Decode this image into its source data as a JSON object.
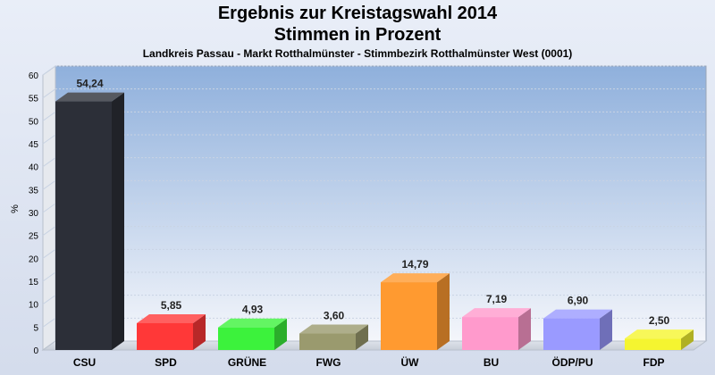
{
  "chart_data": {
    "type": "bar",
    "title": [
      "Ergebnis zur Kreistagswahl 2014",
      "Stimmen in Prozent"
    ],
    "subtitle": "Landkreis Passau - Markt Rotthalmünster - Stimmbezirk Rotthalmünster West (0001)",
    "ylabel": "%",
    "ylim": [
      0,
      60
    ],
    "yticks": [
      "0",
      "5",
      "10",
      "15",
      "20",
      "25",
      "30",
      "35",
      "40",
      "45",
      "50",
      "55",
      "60"
    ],
    "categories": [
      "CSU",
      "SPD",
      "GRÜNE",
      "FWG",
      "ÜW",
      "BU",
      "ÖDP/PU",
      "FDP"
    ],
    "values": [
      54.24,
      5.85,
      4.93,
      3.6,
      14.79,
      7.19,
      6.9,
      2.5
    ],
    "value_labels": [
      "54,24",
      "5,85",
      "4,93",
      "3,60",
      "14,79",
      "7,19",
      "6,90",
      "2,50"
    ],
    "colors": [
      "#2c2f38",
      "#ff3838",
      "#3cf23c",
      "#9a9a6e",
      "#ff9a30",
      "#ff9acc",
      "#9a9aff",
      "#f5f530"
    ]
  }
}
